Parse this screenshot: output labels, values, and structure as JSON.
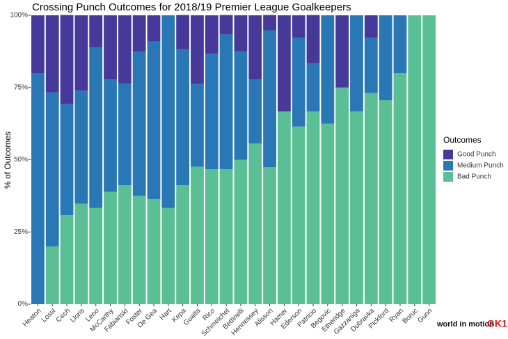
{
  "chart_data": {
    "type": "stacked_bar",
    "title": "Crossing Punch Outcomes for 2018/19 Premier League Goalkeepers",
    "y_label": "% of Outcomes",
    "legend_title": "Outcomes",
    "categories": [
      "Heaton",
      "Lossl",
      "Cech",
      "Lloris",
      "Leno",
      "McCarthy",
      "Fabianski",
      "Foster",
      "De Gea",
      "Hart",
      "Kepa",
      "Guaita",
      "Rico",
      "Schmeichel",
      "Bettinelli",
      "Hennessey",
      "Alisson",
      "Hamer",
      "Ederson",
      "Patricio",
      "Begovic",
      "Etheridge",
      "Gazzaniga",
      "Dubravka",
      "Pickford",
      "Ryan",
      "Boruc",
      "Gunn"
    ],
    "series": [
      {
        "name": "Good Punch",
        "color": "#46399a",
        "values": [
          20,
          26.7,
          30.8,
          26.1,
          11.1,
          22.2,
          23.5,
          12.5,
          9.1,
          0,
          11.8,
          23.8,
          13.3,
          6.7,
          12.5,
          22.2,
          5.3,
          33.3,
          7.7,
          16.7,
          0,
          25,
          0,
          7.7,
          0,
          0,
          0,
          0
        ]
      },
      {
        "name": "Medium Punch",
        "color": "#2a77b5",
        "values": [
          80,
          53.3,
          38.5,
          39.1,
          55.6,
          38.9,
          35.3,
          50,
          54.5,
          66.7,
          47.1,
          28.6,
          40,
          46.7,
          37.5,
          22.2,
          47.4,
          0,
          30.8,
          16.7,
          37.5,
          0,
          33.3,
          19.2,
          29.4,
          20,
          0,
          0
        ]
      },
      {
        "name": "Bad Punch",
        "color": "#5bbf96",
        "values": [
          0,
          20,
          30.8,
          34.8,
          33.3,
          38.9,
          41.2,
          37.5,
          36.4,
          33.3,
          41.2,
          47.6,
          46.7,
          46.7,
          50,
          55.6,
          47.4,
          66.7,
          61.5,
          66.7,
          62.5,
          75,
          66.7,
          73.1,
          70.6,
          80,
          100,
          100
        ]
      }
    ],
    "ylim": [
      0,
      100
    ],
    "yticks": [
      {
        "value": 0,
        "label": "0%"
      },
      {
        "value": 25,
        "label": "25%"
      },
      {
        "value": 50,
        "label": "50%"
      },
      {
        "value": 75,
        "label": "75%"
      },
      {
        "value": 100,
        "label": "100%"
      }
    ],
    "legend": "right"
  },
  "logo": {
    "text": "world in motion",
    "badge": "GK1"
  }
}
